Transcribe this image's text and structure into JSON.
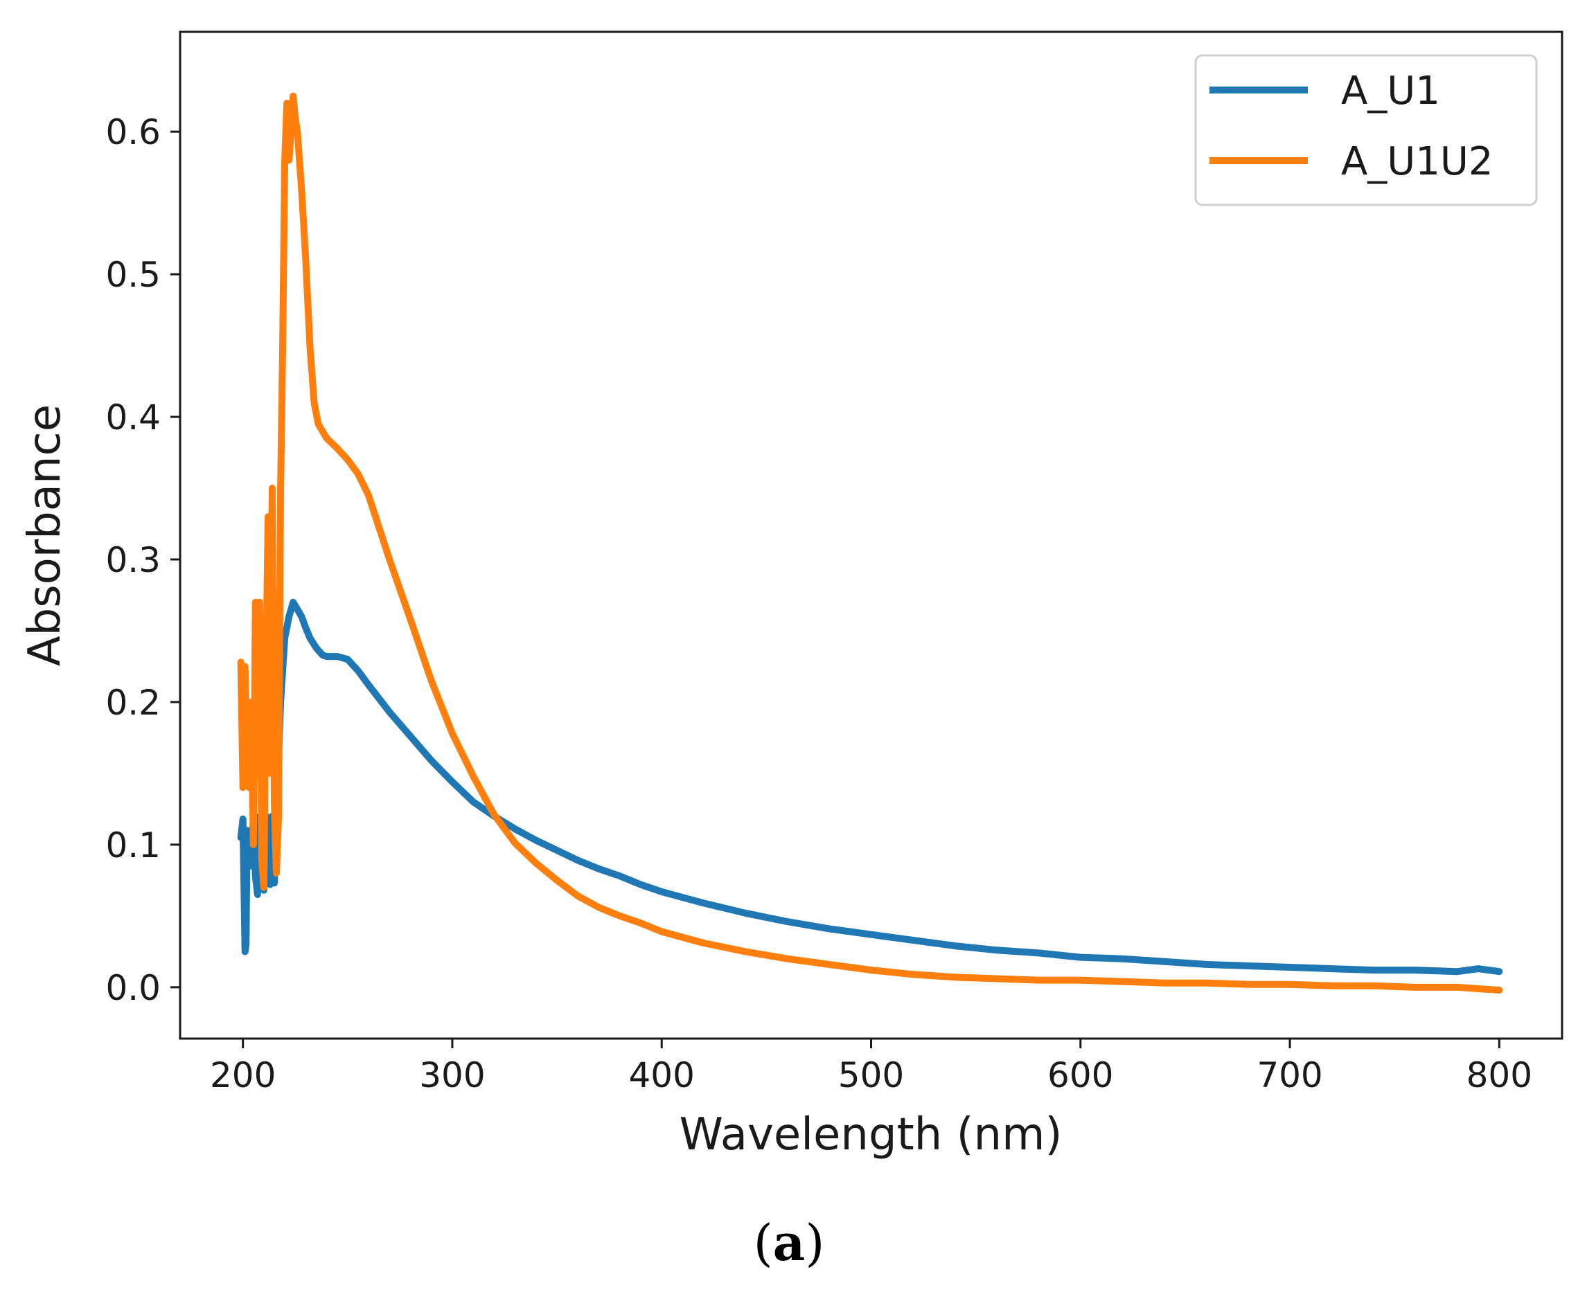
{
  "chart_data": {
    "type": "line",
    "title": "",
    "xlabel": "Wavelength (nm)",
    "ylabel": "Absorbance",
    "xlim": [
      170,
      830
    ],
    "ylim": [
      -0.036,
      0.67
    ],
    "xticks": [
      200,
      300,
      400,
      500,
      600,
      700,
      800
    ],
    "yticks": [
      0.0,
      0.1,
      0.2,
      0.3,
      0.4,
      0.5,
      0.6
    ],
    "ytick_labels": [
      "0.0",
      "0.1",
      "0.2",
      "0.3",
      "0.4",
      "0.5",
      "0.6"
    ],
    "grid": false,
    "legend_position": "top-right",
    "caption": {
      "open": "(",
      "letter": "a",
      "close": ")"
    },
    "series": [
      {
        "name": "A_U1",
        "color": "#1f77b4",
        "x": [
          199,
          200,
          201,
          201.5,
          202,
          203,
          204,
          205,
          206,
          207,
          208,
          209,
          210,
          211,
          212,
          213,
          214,
          215,
          216,
          218,
          220,
          222,
          224,
          226,
          228,
          230,
          232,
          235,
          238,
          240,
          245,
          250,
          255,
          260,
          270,
          280,
          290,
          300,
          310,
          320,
          330,
          340,
          350,
          360,
          370,
          380,
          390,
          400,
          420,
          440,
          460,
          480,
          500,
          520,
          540,
          560,
          580,
          600,
          620,
          640,
          660,
          680,
          700,
          720,
          740,
          760,
          780,
          790,
          800
        ],
        "y": [
          0.105,
          0.118,
          0.025,
          0.03,
          0.11,
          0.1,
          0.085,
          0.12,
          0.078,
          0.065,
          0.12,
          0.075,
          0.068,
          0.12,
          0.073,
          0.072,
          0.12,
          0.073,
          0.12,
          0.2,
          0.245,
          0.26,
          0.27,
          0.265,
          0.26,
          0.252,
          0.245,
          0.238,
          0.233,
          0.232,
          0.232,
          0.23,
          0.222,
          0.212,
          0.193,
          0.176,
          0.159,
          0.144,
          0.13,
          0.12,
          0.111,
          0.103,
          0.096,
          0.089,
          0.083,
          0.078,
          0.072,
          0.067,
          0.059,
          0.052,
          0.046,
          0.041,
          0.037,
          0.033,
          0.029,
          0.026,
          0.024,
          0.021,
          0.02,
          0.018,
          0.016,
          0.015,
          0.014,
          0.013,
          0.012,
          0.012,
          0.011,
          0.013,
          0.011
        ]
      },
      {
        "name": "A_U1U2",
        "color": "#ff7f0e",
        "x": [
          199,
          200,
          201,
          202,
          203,
          204,
          205,
          206,
          207,
          208,
          209,
          210,
          211,
          212,
          213,
          214,
          215,
          216,
          217,
          218,
          219,
          220,
          221,
          222,
          223,
          224,
          225,
          226,
          228,
          230,
          232,
          234,
          236,
          238,
          240,
          245,
          250,
          255,
          260,
          270,
          280,
          290,
          300,
          310,
          320,
          330,
          340,
          350,
          360,
          370,
          380,
          390,
          400,
          420,
          440,
          460,
          480,
          500,
          520,
          540,
          560,
          580,
          600,
          620,
          640,
          660,
          680,
          700,
          720,
          740,
          760,
          780,
          800
        ],
        "y": [
          0.228,
          0.14,
          0.225,
          0.165,
          0.14,
          0.2,
          0.1,
          0.27,
          0.15,
          0.27,
          0.09,
          0.07,
          0.22,
          0.33,
          0.15,
          0.35,
          0.13,
          0.08,
          0.12,
          0.35,
          0.45,
          0.58,
          0.62,
          0.58,
          0.6,
          0.625,
          0.61,
          0.6,
          0.56,
          0.51,
          0.45,
          0.41,
          0.395,
          0.39,
          0.385,
          0.378,
          0.37,
          0.36,
          0.345,
          0.3,
          0.258,
          0.215,
          0.178,
          0.148,
          0.121,
          0.101,
          0.087,
          0.075,
          0.064,
          0.056,
          0.05,
          0.045,
          0.039,
          0.031,
          0.025,
          0.02,
          0.016,
          0.012,
          0.009,
          0.007,
          0.006,
          0.005,
          0.005,
          0.004,
          0.003,
          0.003,
          0.002,
          0.002,
          0.001,
          0.001,
          0.0,
          0.0,
          -0.002
        ]
      }
    ]
  }
}
